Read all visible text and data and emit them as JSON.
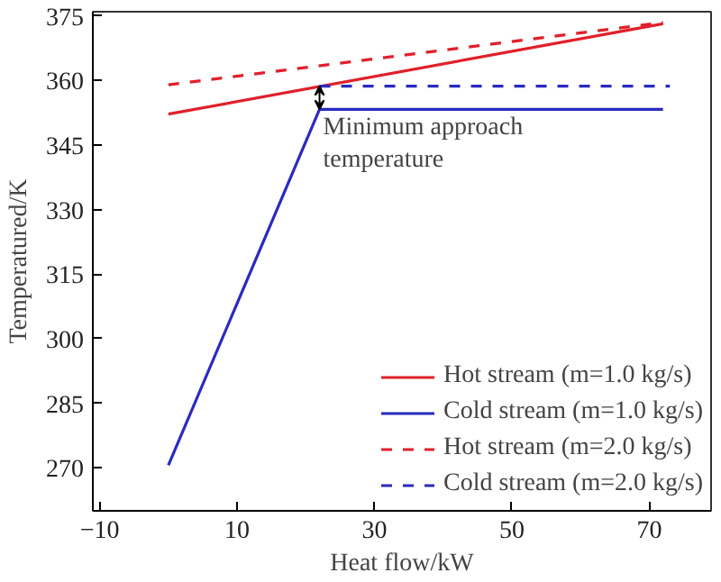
{
  "chart_data": {
    "type": "line",
    "xlabel": "Heat flow/kW",
    "ylabel": "Temperatured/K",
    "xlim": [
      -11,
      79
    ],
    "ylim": [
      260,
      376
    ],
    "xticks": [
      -10,
      10,
      30,
      50,
      70
    ],
    "yticks": [
      270,
      285,
      300,
      315,
      330,
      345,
      360,
      375
    ],
    "grid": false,
    "legend": "bottom right",
    "marker": "none",
    "series": [
      {
        "name": "Hot stream (m=1.0 kg/s)",
        "color": "#e0202a",
        "x": [
          0,
          72
        ],
        "values": [
          352.2,
          373.2
        ],
        "line_style": "solid"
      },
      {
        "name": "Cold stream (m=1.0 kg/s)",
        "color": "#2a2ac0",
        "x": [
          0,
          22,
          72
        ],
        "values": [
          270.6,
          353.3,
          353.3
        ],
        "line_style": "solid"
      },
      {
        "name": "Hot stream (m=2.0 kg/s)",
        "color": "#e0202a",
        "x": [
          0,
          72
        ],
        "values": [
          359,
          373.5
        ],
        "line_style": "dashed"
      },
      {
        "name": "Cold stream (m=2.0 kg/s)",
        "color": "#2a2ac0",
        "x": [
          22,
          73
        ],
        "values": [
          358.7,
          358.7
        ],
        "line_style": "dashed"
      }
    ],
    "annotations": [
      "Minimum approach\ntemperature"
    ]
  }
}
